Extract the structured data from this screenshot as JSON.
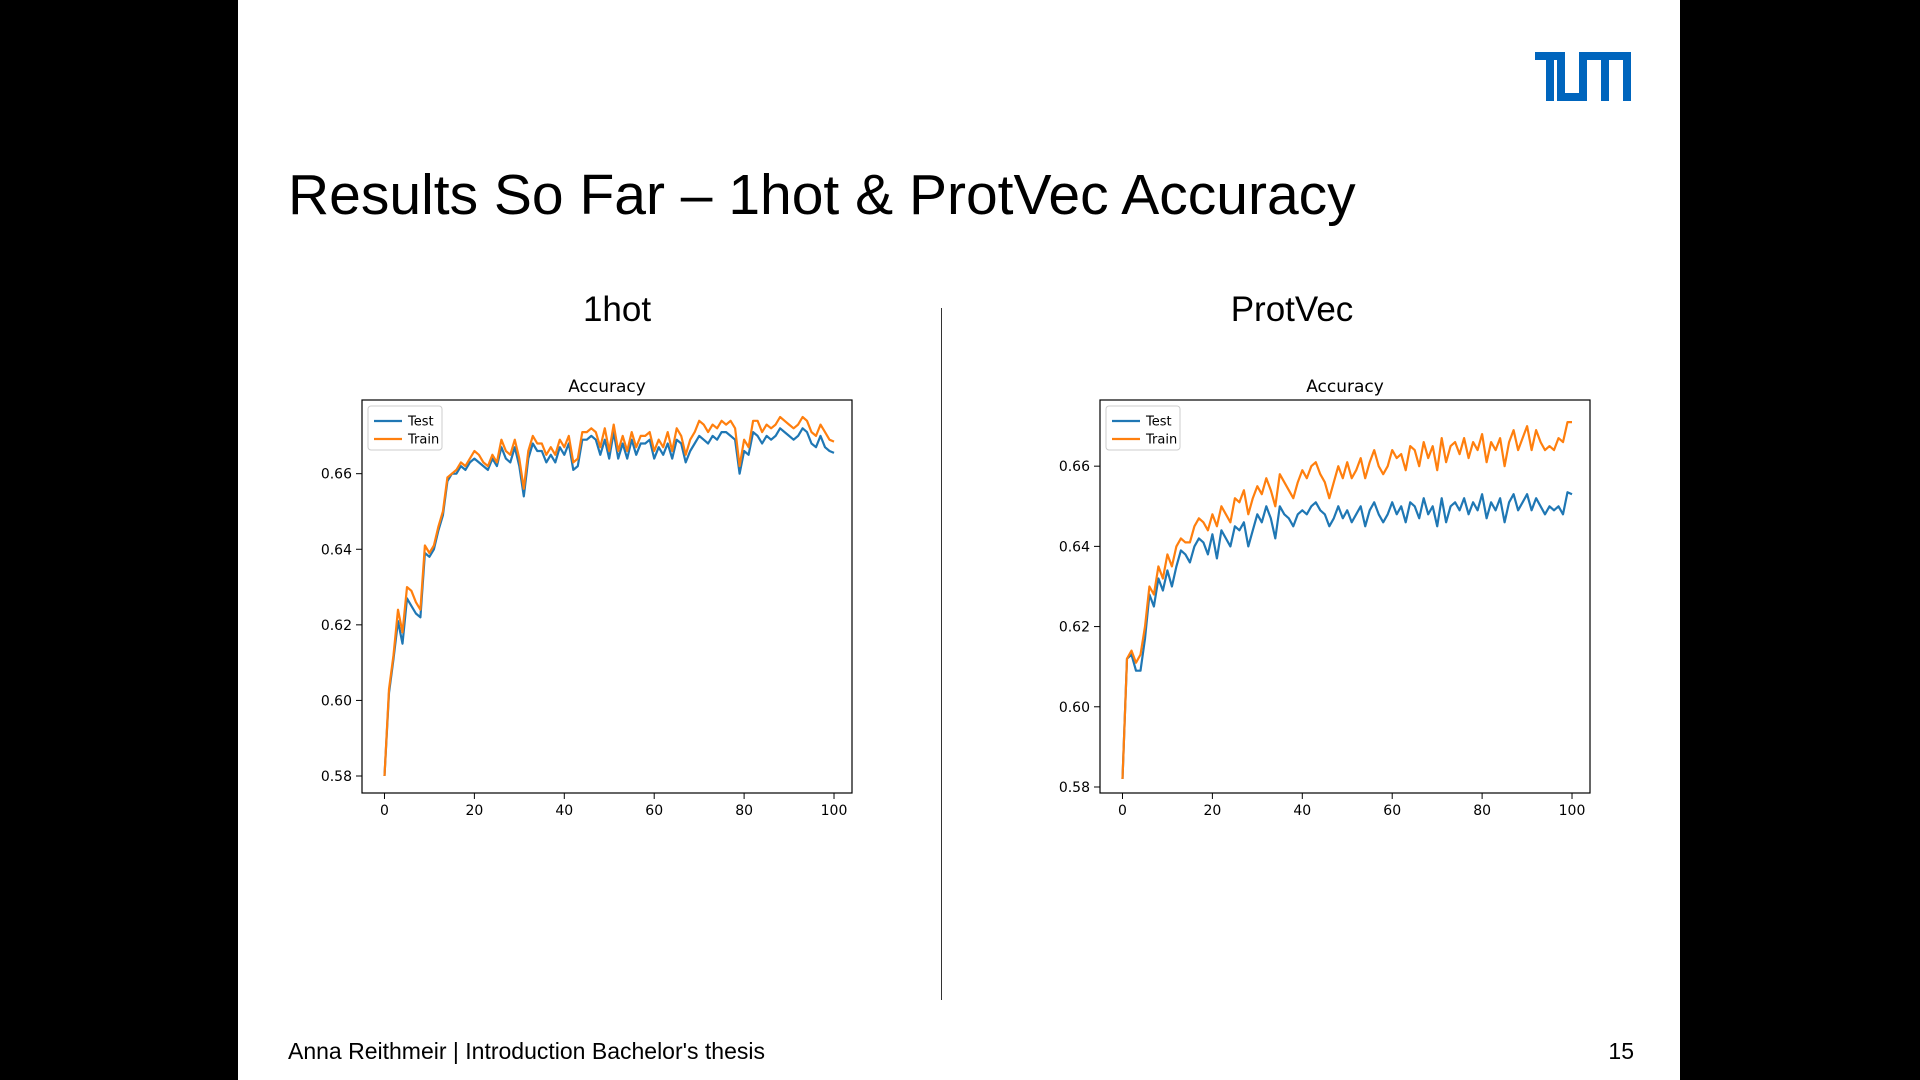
{
  "slide": {
    "title": "Results So Far – 1hot & ProtVec Accuracy",
    "logo_text": "TUM",
    "logo_color": "#0065BD",
    "left_heading": "1hot",
    "right_heading": "ProtVec",
    "footer": "Anna Reithmeir | Introduction Bachelor's thesis",
    "page_number": "15"
  },
  "chart_data": [
    {
      "type": "line",
      "title": "Accuracy",
      "xlim": [
        -5,
        104
      ],
      "ylim": [
        0.5755,
        0.6795
      ],
      "xticks": [
        0,
        20,
        40,
        60,
        80,
        100
      ],
      "yticks": [
        0.58,
        0.6,
        0.62,
        0.64,
        0.66
      ],
      "ytick_labels": [
        "0.58",
        "0.60",
        "0.62",
        "0.64",
        "0.66"
      ],
      "legend_position": "top-left",
      "grid": false,
      "series": [
        {
          "name": "Test",
          "color": "#1f77b4",
          "values": [
            0.58,
            0.602,
            0.611,
            0.621,
            0.615,
            0.627,
            0.625,
            0.623,
            0.622,
            0.639,
            0.638,
            0.64,
            0.645,
            0.649,
            0.658,
            0.66,
            0.66,
            0.662,
            0.661,
            0.663,
            0.664,
            0.663,
            0.662,
            0.661,
            0.664,
            0.662,
            0.667,
            0.664,
            0.663,
            0.667,
            0.662,
            0.654,
            0.664,
            0.668,
            0.666,
            0.666,
            0.663,
            0.665,
            0.663,
            0.667,
            0.665,
            0.668,
            0.661,
            0.662,
            0.669,
            0.669,
            0.67,
            0.669,
            0.665,
            0.669,
            0.664,
            0.671,
            0.664,
            0.668,
            0.664,
            0.669,
            0.665,
            0.668,
            0.668,
            0.669,
            0.664,
            0.667,
            0.665,
            0.668,
            0.664,
            0.669,
            0.668,
            0.663,
            0.666,
            0.668,
            0.67,
            0.669,
            0.668,
            0.67,
            0.669,
            0.671,
            0.671,
            0.67,
            0.669,
            0.66,
            0.666,
            0.665,
            0.671,
            0.67,
            0.668,
            0.67,
            0.669,
            0.67,
            0.672,
            0.671,
            0.67,
            0.669,
            0.67,
            0.672,
            0.671,
            0.668,
            0.667,
            0.67,
            0.667,
            0.666,
            0.6655
          ]
        },
        {
          "name": "Train",
          "color": "#ff7f0e",
          "values": [
            0.58,
            0.603,
            0.612,
            0.624,
            0.618,
            0.63,
            0.629,
            0.626,
            0.624,
            0.641,
            0.639,
            0.641,
            0.646,
            0.65,
            0.659,
            0.66,
            0.661,
            0.663,
            0.662,
            0.664,
            0.666,
            0.665,
            0.663,
            0.662,
            0.665,
            0.663,
            0.669,
            0.666,
            0.665,
            0.669,
            0.664,
            0.656,
            0.666,
            0.67,
            0.668,
            0.668,
            0.665,
            0.667,
            0.665,
            0.669,
            0.667,
            0.67,
            0.663,
            0.664,
            0.671,
            0.671,
            0.672,
            0.671,
            0.667,
            0.672,
            0.666,
            0.673,
            0.666,
            0.67,
            0.666,
            0.671,
            0.667,
            0.67,
            0.67,
            0.671,
            0.666,
            0.669,
            0.667,
            0.671,
            0.666,
            0.672,
            0.67,
            0.665,
            0.669,
            0.671,
            0.674,
            0.673,
            0.671,
            0.673,
            0.672,
            0.674,
            0.673,
            0.674,
            0.672,
            0.662,
            0.669,
            0.667,
            0.674,
            0.674,
            0.671,
            0.673,
            0.672,
            0.673,
            0.675,
            0.674,
            0.673,
            0.672,
            0.673,
            0.675,
            0.674,
            0.671,
            0.67,
            0.673,
            0.671,
            0.669,
            0.6685
          ]
        }
      ]
    },
    {
      "type": "line",
      "title": "Accuracy",
      "xlim": [
        -5,
        104
      ],
      "ylim": [
        0.5785,
        0.6765
      ],
      "xticks": [
        0,
        20,
        40,
        60,
        80,
        100
      ],
      "yticks": [
        0.58,
        0.6,
        0.62,
        0.64,
        0.66
      ],
      "ytick_labels": [
        "0.58",
        "0.60",
        "0.62",
        "0.64",
        "0.66"
      ],
      "legend_position": "top-left",
      "grid": false,
      "series": [
        {
          "name": "Test",
          "color": "#1f77b4",
          "values": [
            0.582,
            0.612,
            0.613,
            0.609,
            0.609,
            0.617,
            0.628,
            0.625,
            0.632,
            0.629,
            0.634,
            0.63,
            0.635,
            0.639,
            0.638,
            0.636,
            0.64,
            0.642,
            0.641,
            0.638,
            0.643,
            0.637,
            0.644,
            0.642,
            0.64,
            0.645,
            0.644,
            0.646,
            0.64,
            0.644,
            0.648,
            0.646,
            0.65,
            0.647,
            0.642,
            0.65,
            0.648,
            0.647,
            0.645,
            0.648,
            0.649,
            0.648,
            0.65,
            0.651,
            0.649,
            0.648,
            0.645,
            0.647,
            0.65,
            0.647,
            0.649,
            0.646,
            0.648,
            0.65,
            0.645,
            0.649,
            0.651,
            0.648,
            0.646,
            0.648,
            0.651,
            0.648,
            0.65,
            0.646,
            0.651,
            0.65,
            0.647,
            0.652,
            0.648,
            0.65,
            0.645,
            0.652,
            0.646,
            0.65,
            0.651,
            0.649,
            0.652,
            0.648,
            0.651,
            0.649,
            0.653,
            0.647,
            0.651,
            0.649,
            0.652,
            0.646,
            0.651,
            0.653,
            0.649,
            0.651,
            0.653,
            0.649,
            0.652,
            0.65,
            0.648,
            0.65,
            0.649,
            0.65,
            0.648,
            0.6535,
            0.653
          ]
        },
        {
          "name": "Train",
          "color": "#ff7f0e",
          "values": [
            0.582,
            0.612,
            0.614,
            0.611,
            0.613,
            0.62,
            0.63,
            0.628,
            0.635,
            0.632,
            0.638,
            0.635,
            0.64,
            0.642,
            0.641,
            0.641,
            0.645,
            0.647,
            0.646,
            0.644,
            0.648,
            0.645,
            0.65,
            0.648,
            0.646,
            0.652,
            0.651,
            0.654,
            0.648,
            0.652,
            0.655,
            0.653,
            0.657,
            0.654,
            0.65,
            0.658,
            0.656,
            0.654,
            0.652,
            0.656,
            0.659,
            0.657,
            0.66,
            0.661,
            0.658,
            0.656,
            0.652,
            0.656,
            0.66,
            0.657,
            0.661,
            0.657,
            0.659,
            0.662,
            0.657,
            0.661,
            0.664,
            0.66,
            0.658,
            0.66,
            0.664,
            0.662,
            0.663,
            0.659,
            0.665,
            0.664,
            0.66,
            0.666,
            0.662,
            0.665,
            0.659,
            0.667,
            0.661,
            0.665,
            0.666,
            0.663,
            0.667,
            0.662,
            0.666,
            0.664,
            0.668,
            0.661,
            0.666,
            0.664,
            0.667,
            0.66,
            0.666,
            0.669,
            0.664,
            0.667,
            0.67,
            0.664,
            0.669,
            0.666,
            0.664,
            0.665,
            0.664,
            0.667,
            0.666,
            0.671,
            0.671
          ]
        }
      ]
    }
  ]
}
